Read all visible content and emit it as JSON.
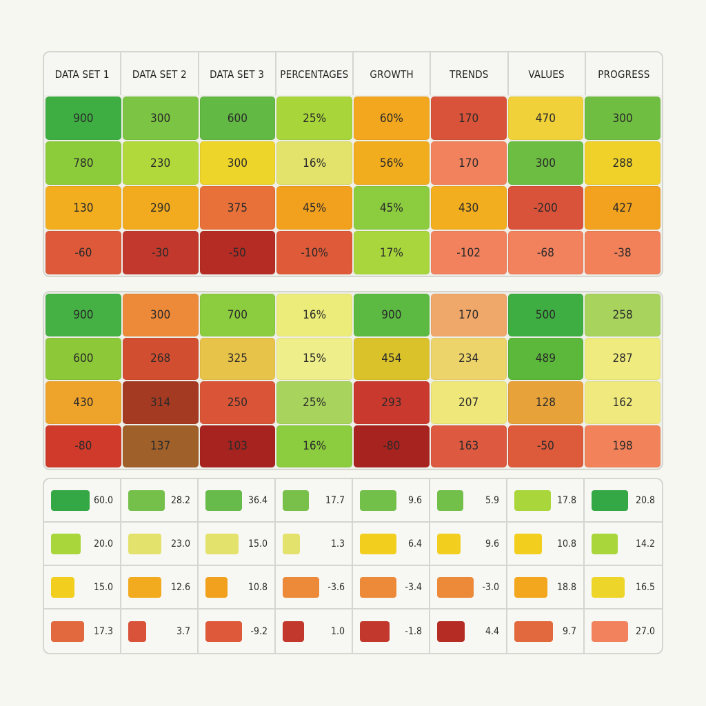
{
  "chart_data": [
    {
      "type": "heatmap",
      "categories": [
        "DATA SET 1",
        "DATA SET 2",
        "DATA SET 3",
        "PERCENTAGES",
        "GROWTH",
        "TRENDS",
        "VALUES",
        "PROGRESS"
      ],
      "rows": [
        [
          "900",
          "300",
          "600",
          "25%",
          "60%",
          "170",
          "470",
          "300"
        ],
        [
          "780",
          "230",
          "300",
          "16%",
          "56%",
          "170",
          "300",
          "288"
        ],
        [
          "130",
          "290",
          "375",
          "45%",
          "45%",
          "430",
          "-200",
          "427"
        ],
        [
          "-60",
          "-30",
          "-50",
          "-10%",
          "17%",
          "-102",
          "-68",
          "-38"
        ]
      ],
      "colors": [
        [
          "#3fae42",
          "#7cc443",
          "#62b943",
          "#a8d63a",
          "#f2a71e",
          "#d9533a",
          "#f0d13a",
          "#6fbe42"
        ],
        [
          "#8ccc3a",
          "#b2d93c",
          "#eed52a",
          "#e3e36c",
          "#f2ad1e",
          "#f2825e",
          "#6cbd42",
          "#efd12a"
        ],
        [
          "#f2ae1f",
          "#f2ab1f",
          "#e8713a",
          "#f2a11e",
          "#8ccd3f",
          "#f2ae1f",
          "#d9523a",
          "#f2a21e"
        ],
        [
          "#dd5939",
          "#c2382c",
          "#b52c24",
          "#df5a39",
          "#a9d63c",
          "#f2815e",
          "#f2815e",
          "#f28058"
        ]
      ]
    },
    {
      "type": "heatmap",
      "rows": [
        [
          "900",
          "300",
          "700",
          "16%",
          "900",
          "170",
          "500",
          "258"
        ],
        [
          "600",
          "268",
          "325",
          "15%",
          "454",
          "234",
          "489",
          "287"
        ],
        [
          "430",
          "314",
          "250",
          "25%",
          "293",
          "207",
          "128",
          "162"
        ],
        [
          "-80",
          "137",
          "103",
          "16%",
          "-80",
          "163",
          "-50",
          "198"
        ]
      ],
      "colors": [
        [
          "#45b044",
          "#ec8a3a",
          "#8ccd3f",
          "#ecec7a",
          "#5cba43",
          "#f0a76a",
          "#3fae42",
          "#a8d45e"
        ],
        [
          "#8cc838",
          "#d24e30",
          "#e8c34a",
          "#eeee8a",
          "#d9c22a",
          "#ecd36a",
          "#5cb83a",
          "#efeb7e"
        ],
        [
          "#eea42a",
          "#a53a22",
          "#da5537",
          "#a8d45e",
          "#c9392e",
          "#efe77a",
          "#e8a23a",
          "#f0ea7e"
        ],
        [
          "#cf3a2a",
          "#a0602a",
          "#a7231f",
          "#8ccd3f",
          "#a7231f",
          "#dd5a40",
          "#dd5a3a",
          "#f2825a"
        ]
      ]
    },
    {
      "type": "bar",
      "rows": [
        [
          60.0,
          28.2,
          36.4,
          17.7,
          9.6,
          5.9,
          17.8,
          20.8
        ],
        [
          20.0,
          23.0,
          15.0,
          1.3,
          6.4,
          9.6,
          10.8,
          14.2
        ],
        [
          15.0,
          12.6,
          10.8,
          -3.6,
          -3.4,
          -3.0,
          18.8,
          16.5
        ],
        [
          17.3,
          3.7,
          -9.2,
          1.0,
          -1.8,
          4.4,
          9.7,
          27.0
        ]
      ],
      "labels": [
        [
          "60.0",
          "28.2",
          "36.4",
          "17.7",
          "9.6",
          "5.9",
          "17.8",
          "20.8"
        ],
        [
          "20.0",
          "23.0",
          "15.0",
          "1.3",
          "6.4",
          "9.6",
          "10.8",
          "14.2"
        ],
        [
          "15.0",
          "12.6",
          "10.8",
          "-3.6",
          "-3.4",
          "-3.0",
          "18.8",
          "16.5"
        ],
        [
          "17.3",
          "3.7",
          "-9.2",
          "1.0",
          "-1.8",
          "4.4",
          "9.7",
          "27.0"
        ]
      ],
      "colors": [
        [
          "#34a844",
          "#74c04a",
          "#66bb4a",
          "#78c04a",
          "#72bf4a",
          "#72bf4a",
          "#a9d63a",
          "#34a844"
        ],
        [
          "#a9d63a",
          "#e2e26c",
          "#e2e26c",
          "#e2e26c",
          "#f2cf1e",
          "#f2cf1e",
          "#f2cf1e",
          "#a9d63a"
        ],
        [
          "#f2cf1e",
          "#f2ab1f",
          "#f2a11e",
          "#ec8a3a",
          "#ec8a3a",
          "#ec8a3a",
          "#f2a71e",
          "#eed52a"
        ],
        [
          "#e2683e",
          "#d9523a",
          "#dd5939",
          "#c2382c",
          "#c2382c",
          "#b52c24",
          "#e2683e",
          "#f2825e"
        ]
      ],
      "bar_fraction": [
        [
          0.9,
          0.85,
          0.85,
          0.62,
          0.85,
          0.62,
          0.85,
          0.85
        ],
        [
          0.7,
          0.78,
          0.78,
          0.4,
          0.85,
          0.55,
          0.65,
          0.62
        ],
        [
          0.55,
          0.78,
          0.52,
          0.85,
          0.85,
          0.85,
          0.78,
          0.78
        ],
        [
          0.78,
          0.42,
          0.85,
          0.5,
          0.7,
          0.65,
          0.9,
          0.85
        ]
      ]
    }
  ]
}
